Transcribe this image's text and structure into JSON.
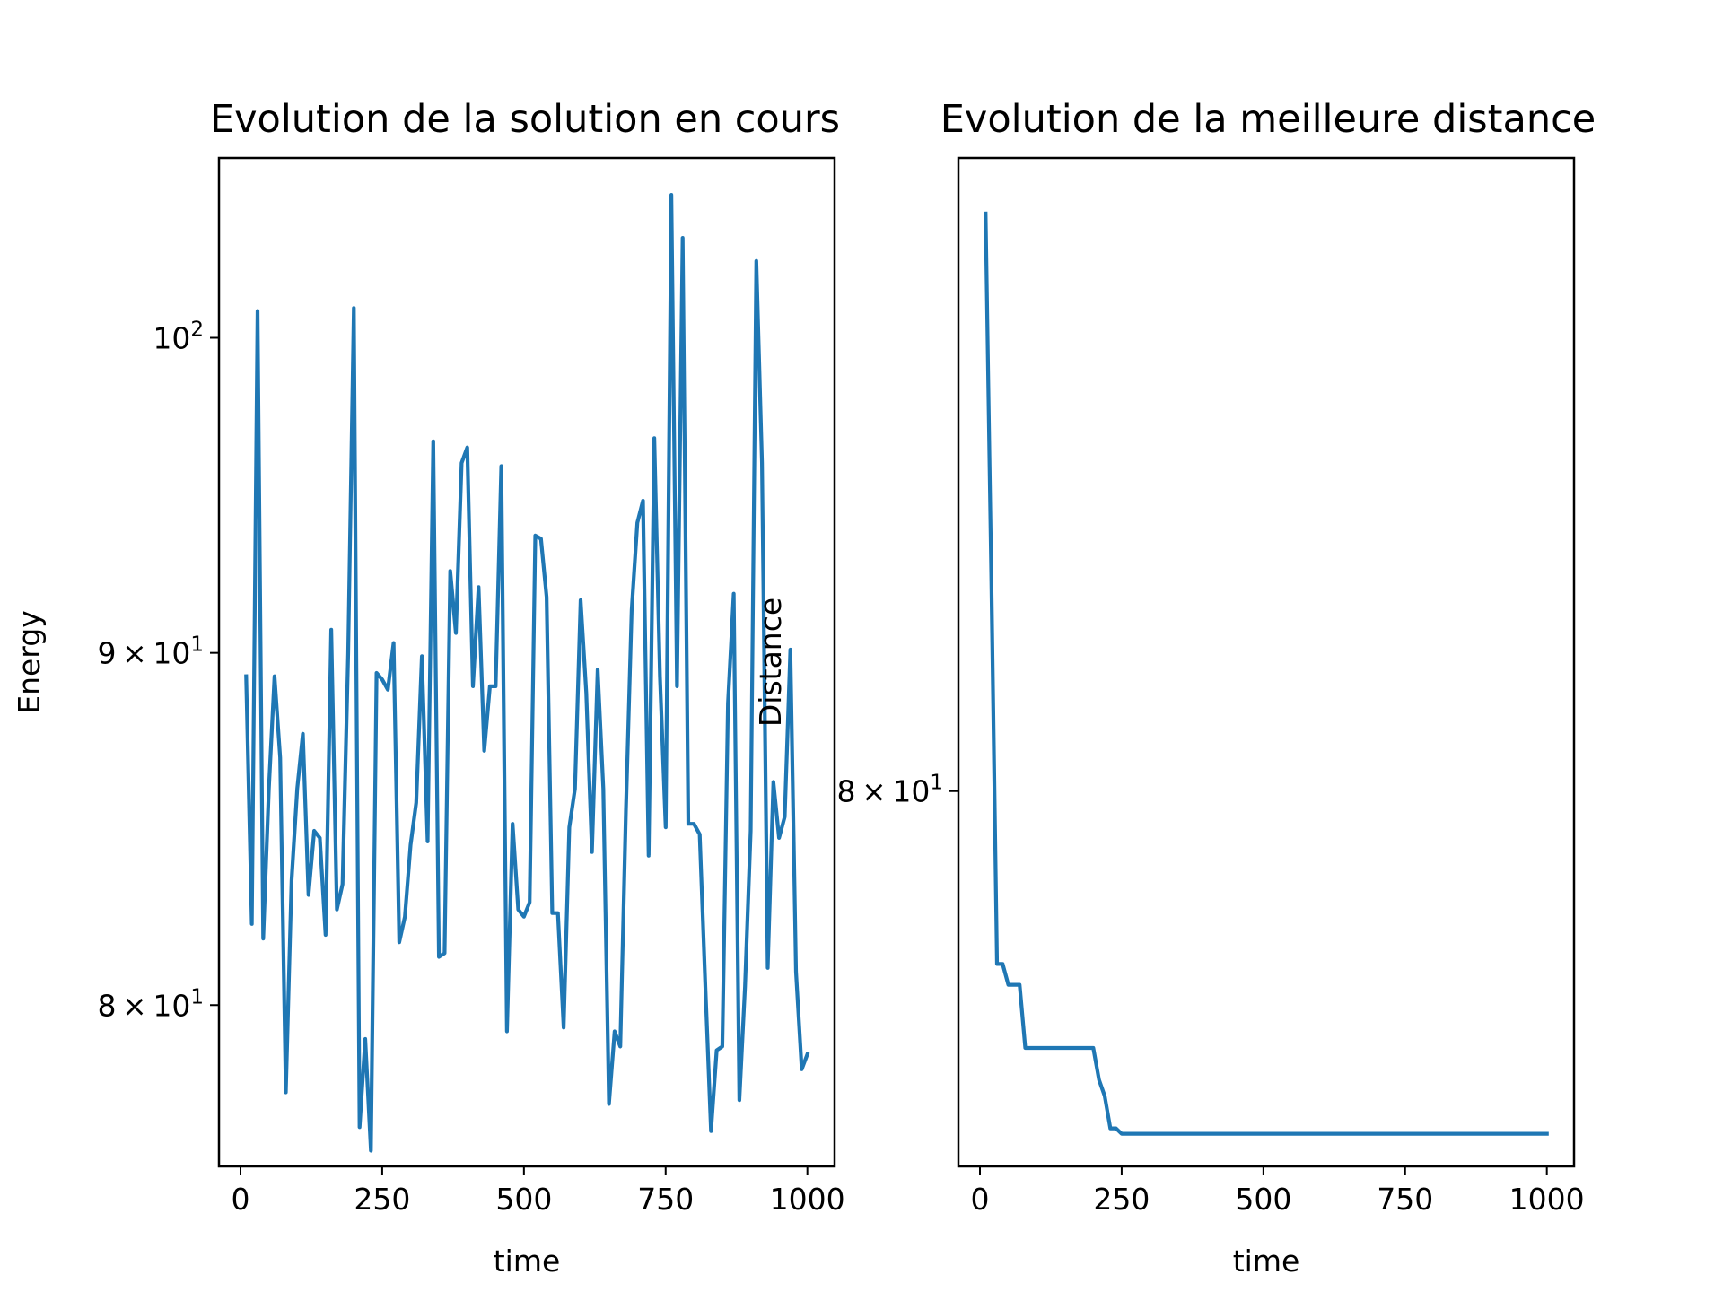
{
  "chart_data": [
    {
      "type": "line",
      "title": "Evolution de la solution en cours",
      "xlabel": "time",
      "ylabel": "Energy",
      "yscale": "log",
      "xlim": [
        -38,
        1048
      ],
      "ylim": [
        75.8,
        106.2
      ],
      "xticks": [
        0,
        250,
        500,
        750,
        1000
      ],
      "xtick_labels": [
        "0",
        "250",
        "500",
        "750",
        "1000"
      ],
      "yticks": [
        {
          "value": 80,
          "mantissa": "8",
          "base": "10",
          "exp": "1"
        },
        {
          "value": 90,
          "mantissa": "9",
          "base": "10",
          "exp": "1"
        },
        {
          "value": 100,
          "mantissa": "",
          "base": "10",
          "exp": "2"
        }
      ],
      "grid": false,
      "color": "#1f77b4",
      "series": [
        {
          "x": [
            10,
            20,
            30,
            40,
            50,
            60,
            70,
            80,
            90,
            100,
            110,
            120,
            130,
            140,
            150,
            160,
            170,
            180,
            190,
            200,
            210,
            220,
            230,
            240,
            250,
            260,
            270,
            280,
            290,
            300,
            310,
            320,
            330,
            340,
            350,
            360,
            370,
            380,
            390,
            400,
            410,
            420,
            430,
            440,
            450,
            460,
            470,
            480,
            490,
            500,
            510,
            520,
            530,
            540,
            550,
            560,
            570,
            580,
            590,
            600,
            610,
            620,
            630,
            640,
            650,
            660,
            670,
            680,
            690,
            700,
            710,
            720,
            730,
            740,
            750,
            760,
            770,
            780,
            790,
            800,
            810,
            820,
            830,
            840,
            850,
            860,
            870,
            880,
            890,
            900,
            910,
            920,
            930,
            940,
            950,
            960,
            970,
            980,
            990,
            1000
          ],
          "y": [
            89.3,
            82.2,
            100.9,
            81.8,
            86.0,
            89.3,
            86.9,
            77.7,
            83.4,
            86.0,
            87.6,
            83.0,
            84.8,
            84.6,
            81.9,
            90.7,
            82.6,
            83.3,
            90.0,
            101.0,
            76.8,
            79.1,
            76.2,
            89.4,
            89.2,
            88.9,
            90.3,
            81.7,
            82.4,
            84.4,
            85.6,
            89.9,
            84.5,
            96.6,
            81.3,
            81.4,
            92.5,
            90.6,
            95.9,
            96.4,
            89.0,
            92.0,
            87.1,
            89.0,
            89.0,
            95.8,
            79.3,
            85.0,
            82.6,
            82.4,
            82.8,
            93.6,
            93.5,
            91.7,
            82.5,
            82.5,
            79.4,
            84.9,
            86.0,
            91.6,
            88.8,
            84.2,
            89.5,
            86.0,
            77.4,
            79.3,
            78.9,
            85.4,
            91.3,
            94.0,
            94.7,
            84.1,
            96.7,
            89.3,
            84.9,
            104.9,
            89.0,
            103.4,
            85.0,
            85.0,
            84.7,
            80.5,
            76.7,
            78.8,
            78.9,
            88.5,
            91.8,
            77.5,
            80.5,
            84.8,
            102.6,
            95.9,
            81.0,
            86.2,
            84.6,
            85.2,
            90.1,
            80.9,
            78.3,
            78.7
          ]
        }
      ]
    },
    {
      "type": "line",
      "title": "Evolution de la meilleure distance",
      "xlabel": "time",
      "ylabel": "Distance",
      "yscale": "log",
      "xlim": [
        -38,
        1048
      ],
      "ylim": [
        72.8,
        93.8
      ],
      "xticks": [
        0,
        250,
        500,
        750,
        1000
      ],
      "xtick_labels": [
        "0",
        "250",
        "500",
        "750",
        "1000"
      ],
      "yticks": [
        {
          "value": 80,
          "mantissa": "8",
          "base": "10",
          "exp": "1"
        }
      ],
      "grid": false,
      "color": "#1f77b4",
      "series": [
        {
          "x": [
            10,
            20,
            30,
            40,
            50,
            60,
            70,
            80,
            90,
            100,
            110,
            120,
            130,
            140,
            150,
            160,
            170,
            180,
            190,
            200,
            210,
            220,
            230,
            240,
            250,
            260,
            270,
            280,
            290,
            300,
            310,
            320,
            330,
            340,
            350,
            360,
            370,
            380,
            390,
            400,
            410,
            420,
            430,
            440,
            450,
            460,
            470,
            480,
            490,
            500,
            510,
            520,
            530,
            540,
            550,
            560,
            570,
            580,
            590,
            600,
            610,
            620,
            630,
            640,
            650,
            660,
            670,
            680,
            690,
            700,
            710,
            720,
            730,
            740,
            750,
            760,
            770,
            780,
            790,
            800,
            810,
            820,
            830,
            840,
            850,
            860,
            870,
            880,
            890,
            900,
            910,
            920,
            930,
            940,
            950,
            960,
            970,
            980,
            990,
            1000
          ],
          "y": [
            92.5,
            84.5,
            76.6,
            76.6,
            76.2,
            76.2,
            76.2,
            75.0,
            75.0,
            75.0,
            75.0,
            75.0,
            75.0,
            75.0,
            75.0,
            75.0,
            75.0,
            75.0,
            75.0,
            75.0,
            74.4,
            74.1,
            73.5,
            73.5,
            73.4,
            73.4,
            73.4,
            73.4,
            73.4,
            73.4,
            73.4,
            73.4,
            73.4,
            73.4,
            73.4,
            73.4,
            73.4,
            73.4,
            73.4,
            73.4,
            73.4,
            73.4,
            73.4,
            73.4,
            73.4,
            73.4,
            73.4,
            73.4,
            73.4,
            73.4,
            73.4,
            73.4,
            73.4,
            73.4,
            73.4,
            73.4,
            73.4,
            73.4,
            73.4,
            73.4,
            73.4,
            73.4,
            73.4,
            73.4,
            73.4,
            73.4,
            73.4,
            73.4,
            73.4,
            73.4,
            73.4,
            73.4,
            73.4,
            73.4,
            73.4,
            73.4,
            73.4,
            73.4,
            73.4,
            73.4,
            73.4,
            73.4,
            73.4,
            73.4,
            73.4,
            73.4,
            73.4,
            73.4,
            73.4,
            73.4,
            73.4,
            73.4,
            73.4,
            73.4,
            73.4,
            73.4,
            73.4,
            73.4,
            73.4,
            73.4
          ]
        }
      ]
    }
  ]
}
